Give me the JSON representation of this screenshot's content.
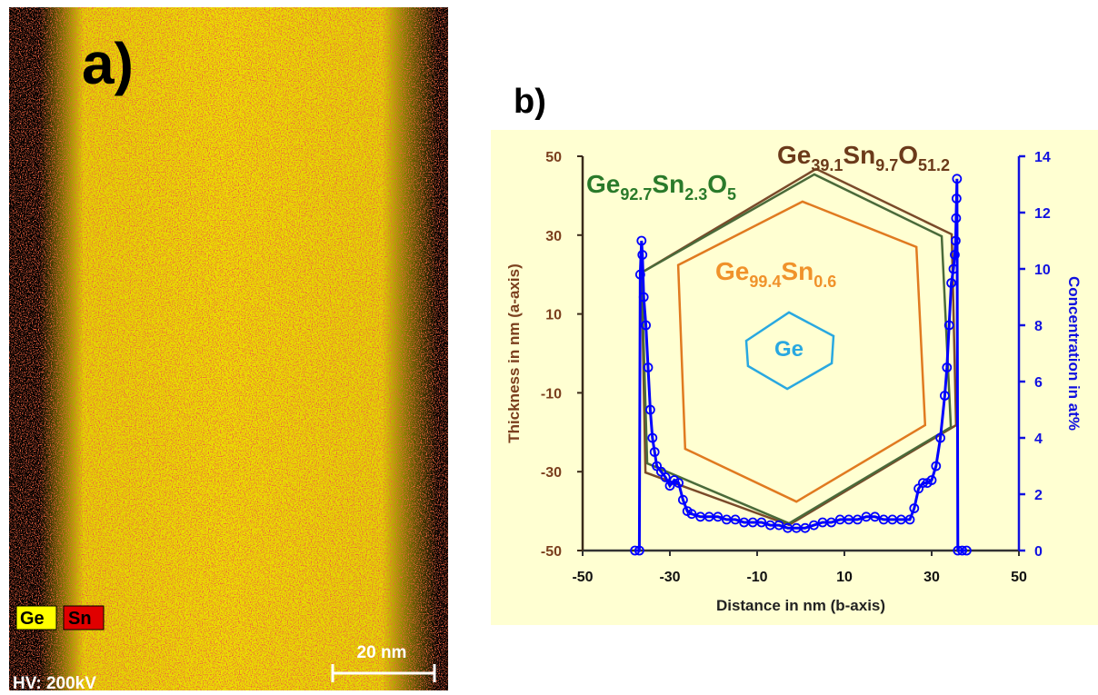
{
  "panel_a": {
    "label": "a)",
    "legend": [
      "Ge",
      "Sn"
    ],
    "scale_bar": "20 nm",
    "hv": "HV: 200kV"
  },
  "chart_data": {
    "type": "line",
    "label": "b)",
    "x_label": "Distance in nm (b-axis)",
    "y_label": "Thickness in nm (a-axis)",
    "y2_label": "Concentration in at%",
    "xlim": [
      -50,
      50
    ],
    "xticks": [
      -50,
      -30,
      -10,
      10,
      30,
      50
    ],
    "ylim": [
      -50,
      50
    ],
    "yticks": [
      -50,
      -30,
      -10,
      10,
      30,
      50
    ],
    "y2lim": [
      0,
      14
    ],
    "y2ticks": [
      0,
      2,
      4,
      6,
      8,
      10,
      12,
      14
    ],
    "shapes": [
      {
        "label": [
          "Ge",
          "39.1",
          "Sn",
          "9.7",
          "O",
          "51.2"
        ],
        "color": "#6B3A1A",
        "line_color": "#7A4A2A",
        "x": [
          3.5,
          34.6,
          35.6,
          -2.7,
          -35.6,
          -36.5
        ],
        "y": [
          46.8,
          30.2,
          -18.2,
          -43.5,
          -30.2,
          20.5
        ]
      },
      {
        "label": [
          "Ge",
          "92.7",
          "Sn",
          "2.3",
          "O",
          "5"
        ],
        "color": "#2A7A2A",
        "line_color": "#4A6A3A",
        "x": [
          -36.5,
          3.1,
          32.3,
          34.4,
          -2.7,
          -35.2
        ],
        "y": [
          20.5,
          45.4,
          29.7,
          -18.7,
          -43.1,
          -27.9
        ]
      },
      {
        "label": [
          "Ge",
          "99.4",
          "Sn",
          "0.6"
        ],
        "color": "#F0922B",
        "line_color": "#E07A20",
        "x": [
          -28.1,
          0.4,
          26.5,
          28.5,
          -1.0,
          -26.5
        ],
        "y": [
          22.4,
          38.5,
          27.0,
          -18.2,
          -37.6,
          -24.2
        ]
      },
      {
        "label": [
          "Ge"
        ],
        "color": "#29A8E0",
        "line_color": "#29A8E0",
        "x": [
          -12.5,
          -2.7,
          7.5,
          7.1,
          -3.1,
          -12.1
        ],
        "y": [
          3.2,
          10.4,
          4.4,
          -2.5,
          -9.0,
          -3.2
        ]
      }
    ],
    "x": [
      -38,
      -37,
      -36.8,
      -36.5,
      -36.3,
      -36,
      -35.5,
      -35,
      -34.5,
      -34,
      -33.5,
      -33,
      -32,
      -31,
      -30,
      -29,
      -28,
      -27,
      -26,
      -25,
      -23,
      -21,
      -19,
      -17,
      -15,
      -13,
      -11,
      -9,
      -7,
      -5,
      -3,
      -1,
      1,
      3,
      5,
      7,
      9,
      11,
      13,
      15,
      17,
      19,
      21,
      23,
      25,
      26,
      27,
      28,
      29,
      30,
      31,
      32,
      33,
      33.5,
      34,
      34.5,
      35,
      35.3,
      35.5,
      35.6,
      35.7,
      35.8,
      36,
      37,
      38
    ],
    "series": [
      {
        "color": "#0000FF",
        "axis": "y2",
        "values": [
          0,
          0,
          9.8,
          11,
          10.5,
          9,
          8,
          6.5,
          5,
          4,
          3.5,
          3,
          2.8,
          2.6,
          2.3,
          2.5,
          2.4,
          1.8,
          1.4,
          1.3,
          1.2,
          1.2,
          1.2,
          1.1,
          1.1,
          1.0,
          1.0,
          1.0,
          0.9,
          0.9,
          0.8,
          0.8,
          0.8,
          0.9,
          1.0,
          1.0,
          1.1,
          1.1,
          1.1,
          1.2,
          1.2,
          1.1,
          1.1,
          1.1,
          1.1,
          1.5,
          2.2,
          2.4,
          2.4,
          2.5,
          3.0,
          4.0,
          5.5,
          6.5,
          8.0,
          9.5,
          10.0,
          10.5,
          11.0,
          11.8,
          12.5,
          13.2,
          0,
          0,
          0
        ]
      }
    ],
    "left_axis_color": "#7B3F1E",
    "right_axis_color": "#1010E0",
    "background": "#FFFFD2"
  }
}
